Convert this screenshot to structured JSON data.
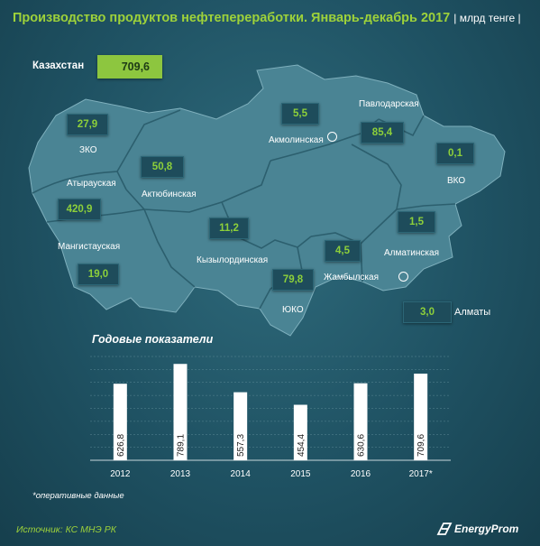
{
  "header": {
    "title": "Производство продуктов нефтепереработки. Январь-декабрь 2017",
    "unit": "| млрд тенге |"
  },
  "total": {
    "label": "Казахстан",
    "value": "709,6"
  },
  "regions": {
    "zko": {
      "name": "ЗКО",
      "value": "27,9"
    },
    "atyrau": {
      "name": "Атырауская",
      "value": "420,9"
    },
    "mangystau": {
      "name": "Мангистауская",
      "value": "19,0"
    },
    "aktobe": {
      "name": "Актюбинская",
      "value": "50,8"
    },
    "kyzylorda": {
      "name": "Кызылординская",
      "value": "11,2"
    },
    "uko": {
      "name": "ЮКО",
      "value": "79,8"
    },
    "zhambyl": {
      "name": "Жамбылская",
      "value": "4,5"
    },
    "akmola": {
      "name": "Акмолинская",
      "value": "5,5"
    },
    "pavlodar": {
      "name": "Павлодарская",
      "value": "85,4"
    },
    "vko": {
      "name": "ВКО",
      "value": "0,1"
    },
    "almaty_obl": {
      "name": "Алматинская",
      "value": "1,5"
    },
    "almaty_city": {
      "name": "Алматы",
      "value": "3,0"
    }
  },
  "chart_title": "Годовые показатели",
  "chart_data": {
    "type": "bar",
    "categories": [
      "2012",
      "2013",
      "2014",
      "2015",
      "2016",
      "2017*"
    ],
    "values": [
      626.8,
      789.1,
      557.3,
      454.4,
      630.6,
      709.6
    ],
    "value_labels": [
      "626,8",
      "789,1",
      "557,3",
      "454,4",
      "630,6",
      "709,6"
    ],
    "ylim": [
      0,
      850
    ],
    "bar_color": "#ffffff",
    "title": "Годовые показатели",
    "grid": true
  },
  "footnote": "*оперативные данные",
  "source": "Источник: КС МНЭ РК",
  "logo": "EnergyProm",
  "colors": {
    "accent_green": "#8dc63f",
    "map_fill": "#4a8494",
    "background": "#1f5263"
  }
}
